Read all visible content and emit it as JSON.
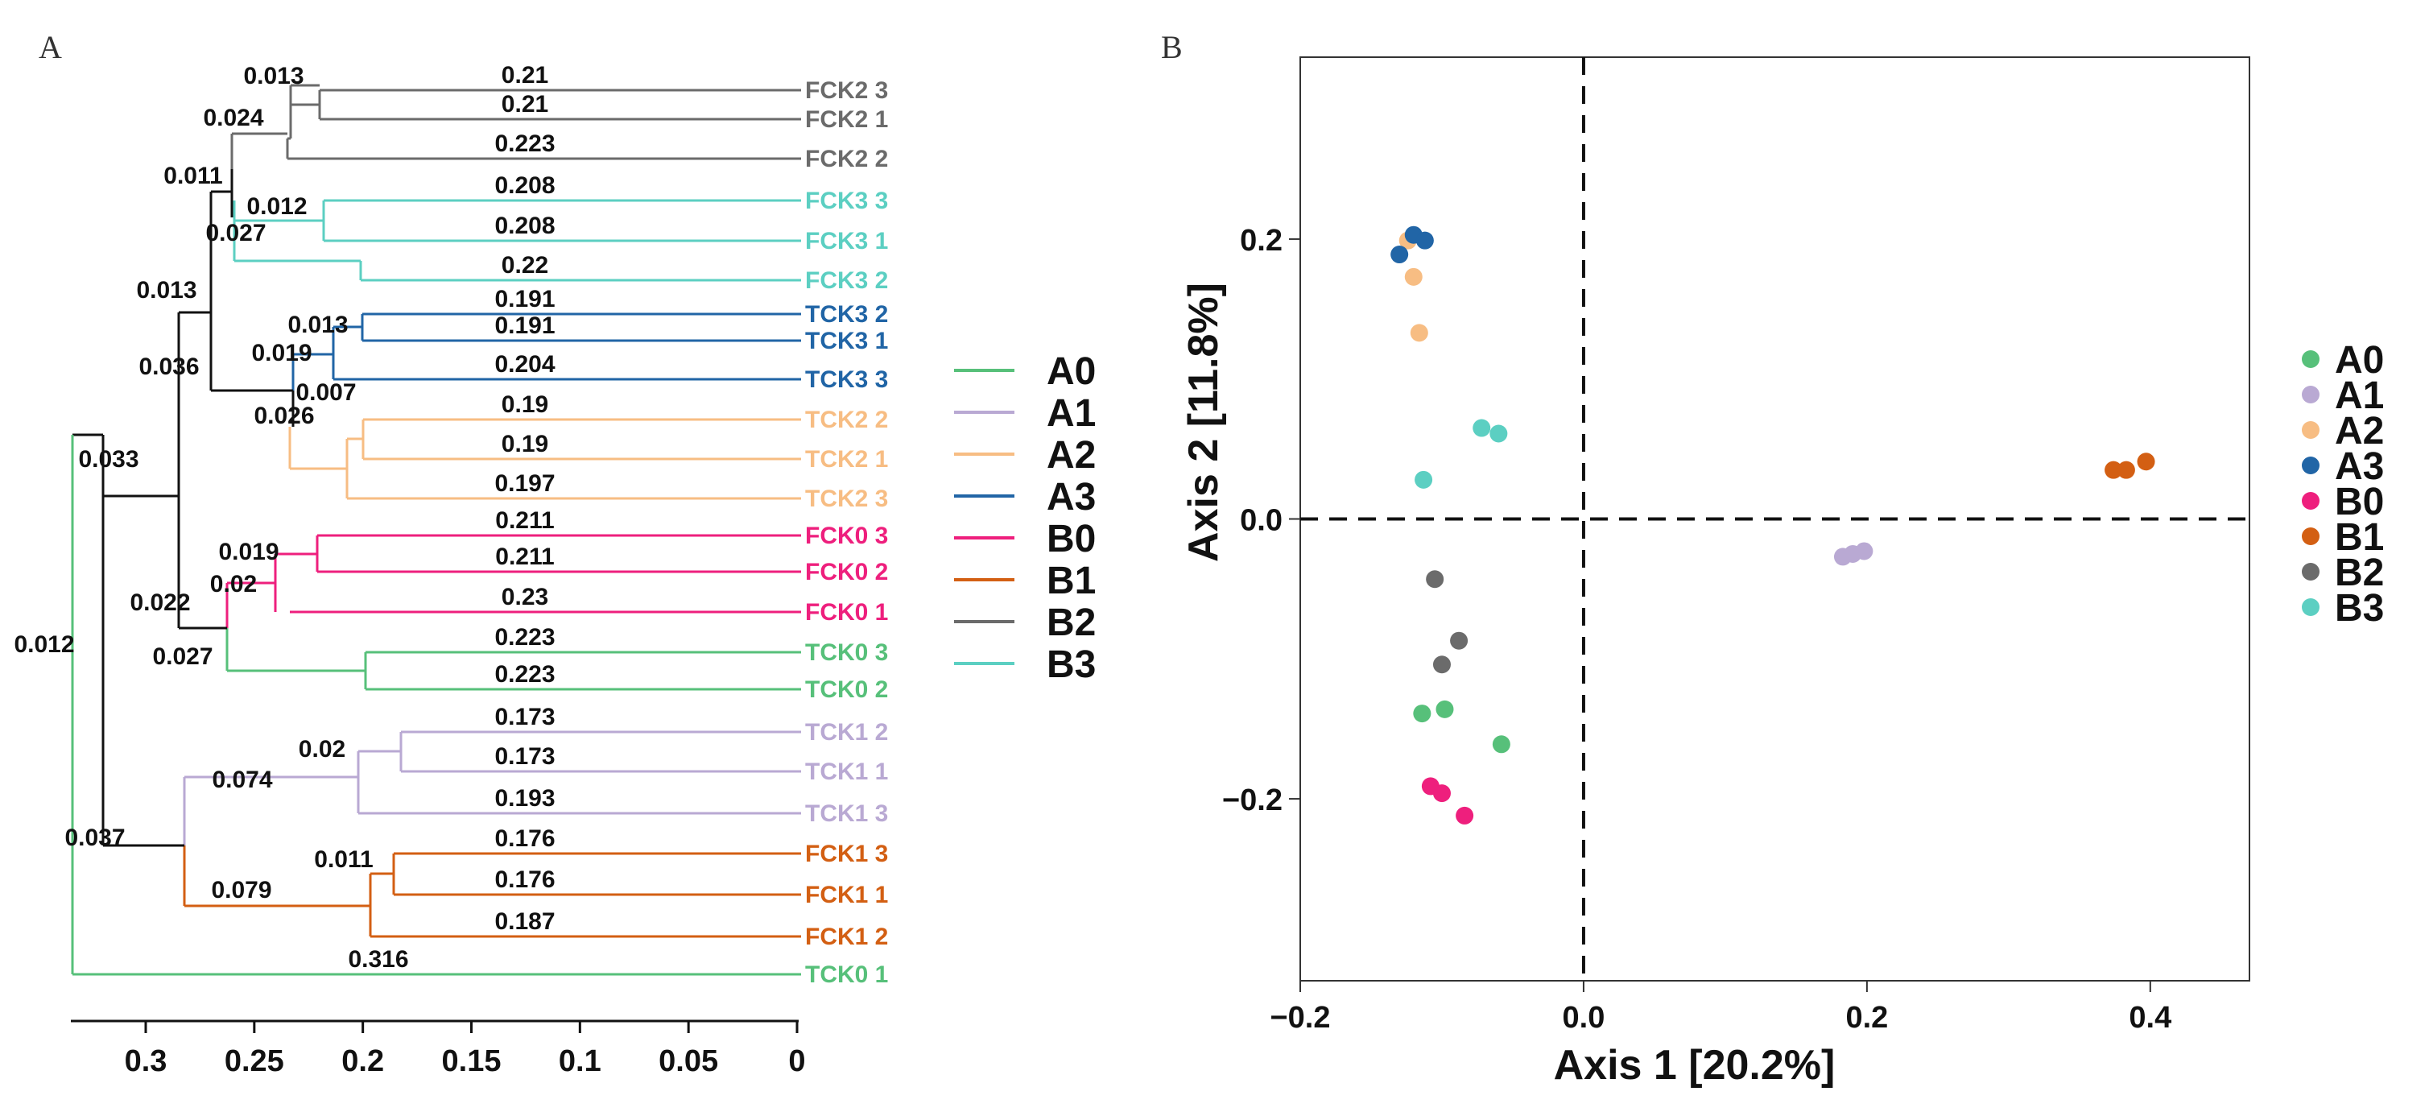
{
  "colors": {
    "A0": "#57c07a",
    "A1": "#b9a9d3",
    "A2": "#f7bd83",
    "A3": "#2165a6",
    "B0": "#ee1f7d",
    "B1": "#d35f13",
    "B2": "#6b6b6b",
    "B3": "#5ccfc2",
    "black": "#111111"
  },
  "chart_data": [
    {
      "type": "dendrogram",
      "panel_label": "A",
      "x_axis": {
        "ticks": [
          0.3,
          0.25,
          0.2,
          0.15,
          0.1,
          0.05,
          0
        ],
        "tick_labels": [
          "0.3",
          "0.25",
          "0.2",
          "0.15",
          "0.1",
          "0.05",
          "0"
        ],
        "range": [
          0.35,
          0
        ]
      },
      "leaves": [
        {
          "label": "FCK2 3",
          "group": "B2",
          "branch_label": "0.21"
        },
        {
          "label": "FCK2 1",
          "group": "B2",
          "branch_label": "0.21"
        },
        {
          "label": "FCK2 2",
          "group": "B2",
          "branch_label": "0.223"
        },
        {
          "label": "FCK3 3",
          "group": "B3",
          "branch_label": "0.208"
        },
        {
          "label": "FCK3 1",
          "group": "B3",
          "branch_label": "0.208"
        },
        {
          "label": "FCK3 2",
          "group": "B3",
          "branch_label": "0.22"
        },
        {
          "label": "TCK3 2",
          "group": "A3",
          "branch_label": "0.191"
        },
        {
          "label": "TCK3 1",
          "group": "A3",
          "branch_label": "0.191"
        },
        {
          "label": "TCK3 3",
          "group": "A3",
          "branch_label": "0.204"
        },
        {
          "label": "TCK2 2",
          "group": "A2",
          "branch_label": "0.19"
        },
        {
          "label": "TCK2 1",
          "group": "A2",
          "branch_label": "0.19"
        },
        {
          "label": "TCK2 3",
          "group": "A2",
          "branch_label": "0.197"
        },
        {
          "label": "FCK0 3",
          "group": "B0",
          "branch_label": "0.211"
        },
        {
          "label": "FCK0 2",
          "group": "B0",
          "branch_label": "0.211"
        },
        {
          "label": "FCK0 1",
          "group": "B0",
          "branch_label": "0.23"
        },
        {
          "label": "TCK0 3",
          "group": "A0",
          "branch_label": "0.223"
        },
        {
          "label": "TCK0 2",
          "group": "A0",
          "branch_label": "0.223"
        },
        {
          "label": "TCK1 2",
          "group": "A1",
          "branch_label": "0.173"
        },
        {
          "label": "TCK1 1",
          "group": "A1",
          "branch_label": "0.173"
        },
        {
          "label": "TCK1 3",
          "group": "A1",
          "branch_label": "0.193"
        },
        {
          "label": "FCK1 3",
          "group": "B1",
          "branch_label": "0.176"
        },
        {
          "label": "FCK1 1",
          "group": "B1",
          "branch_label": "0.176"
        },
        {
          "label": "FCK1 2",
          "group": "B1",
          "branch_label": "0.187"
        },
        {
          "label": "TCK0 1",
          "group": "A0",
          "branch_label": "0.316"
        }
      ],
      "internal_node_labels": [
        "0.013",
        "0.024",
        "0.011",
        "0.012",
        "0.027",
        "0.013",
        "0.013",
        "0.019",
        "0.036",
        "0.007",
        "0.026",
        "0.033",
        "0.019",
        "0.02",
        "0.022",
        "0.027",
        "0.012",
        "0.02",
        "0.074",
        "0.037",
        "0.011",
        "0.079"
      ],
      "legend": [
        "A0",
        "A1",
        "A2",
        "A3",
        "B0",
        "B1",
        "B2",
        "B3"
      ]
    },
    {
      "type": "scatter",
      "panel_label": "B",
      "xlabel": "Axis 1 [20.2%]",
      "ylabel": "Axis 2 [11.8%]",
      "xlim": [
        -0.2,
        0.47
      ],
      "ylim": [
        -0.33,
        0.33
      ],
      "x_ticks": [
        -0.2,
        0.0,
        0.2,
        0.4
      ],
      "x_tick_labels": [
        "−0.2",
        "0.0",
        "0.2",
        "0.4"
      ],
      "y_ticks": [
        0.2,
        0.0,
        -0.2
      ],
      "y_tick_labels": [
        "0.2",
        "0.0",
        "−0.2"
      ],
      "reference_lines": {
        "x": 0,
        "y": 0,
        "style": "dashed"
      },
      "legend": [
        "A0",
        "A1",
        "A2",
        "A3",
        "B0",
        "B1",
        "B2",
        "B3"
      ],
      "series": [
        {
          "name": "A0",
          "points": [
            [
              -0.114,
              -0.139
            ],
            [
              -0.098,
              -0.136
            ],
            [
              -0.058,
              -0.161
            ]
          ]
        },
        {
          "name": "A1",
          "points": [
            [
              0.183,
              -0.027
            ],
            [
              0.19,
              -0.025
            ],
            [
              0.198,
              -0.023
            ]
          ]
        },
        {
          "name": "A2",
          "points": [
            [
              -0.124,
              0.199
            ],
            [
              -0.12,
              0.173
            ],
            [
              -0.116,
              0.133
            ]
          ]
        },
        {
          "name": "A3",
          "points": [
            [
              -0.12,
              0.203
            ],
            [
              -0.112,
              0.199
            ],
            [
              -0.13,
              0.189
            ]
          ]
        },
        {
          "name": "B0",
          "points": [
            [
              -0.108,
              -0.191
            ],
            [
              -0.1,
              -0.196
            ],
            [
              -0.084,
              -0.212
            ]
          ]
        },
        {
          "name": "B1",
          "points": [
            [
              0.374,
              0.035
            ],
            [
              0.383,
              0.035
            ],
            [
              0.397,
              0.041
            ]
          ]
        },
        {
          "name": "B2",
          "points": [
            [
              -0.105,
              -0.043
            ],
            [
              -0.088,
              -0.087
            ],
            [
              -0.1,
              -0.104
            ]
          ]
        },
        {
          "name": "B3",
          "points": [
            [
              -0.072,
              0.065
            ],
            [
              -0.06,
              0.061
            ],
            [
              -0.113,
              0.028
            ]
          ]
        }
      ]
    }
  ]
}
